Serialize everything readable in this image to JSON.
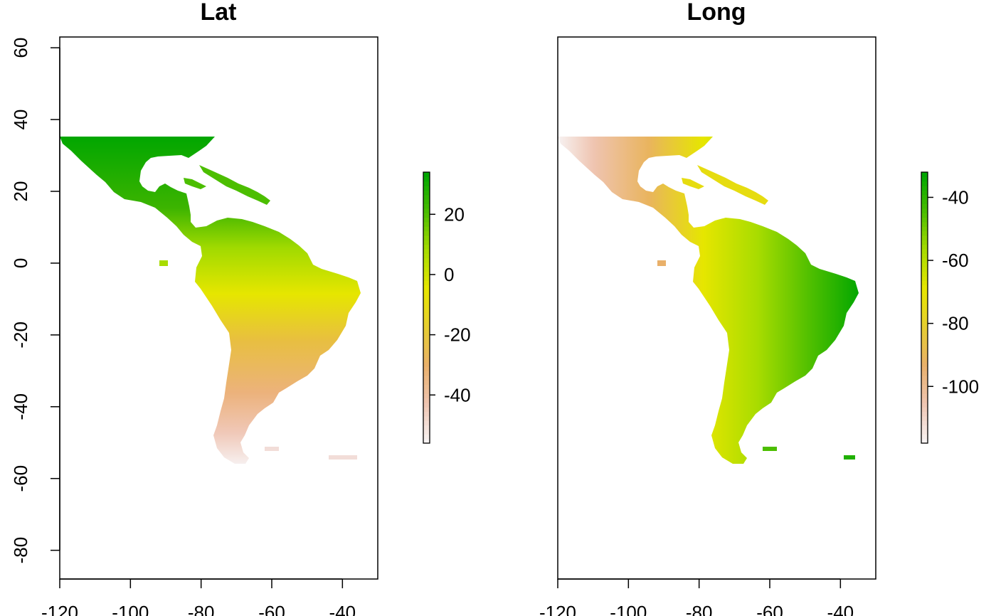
{
  "chart_data": [
    {
      "type": "heatmap",
      "title": "Lat",
      "xlabel": "",
      "ylabel": "",
      "xlim": [
        -120,
        -30
      ],
      "ylim": [
        -88,
        63
      ],
      "xticks": [
        -120,
        -100,
        -80,
        -60,
        -40
      ],
      "yticks": [
        60,
        40,
        20,
        0,
        -20,
        -40,
        -60,
        -80
      ],
      "legend": {
        "range": [
          -56,
          34
        ],
        "ticks": [
          20,
          0,
          -20,
          -40
        ],
        "colors": [
          "#f7f2f2",
          "#eec4b0",
          "#e9b06a",
          "#e6ce30",
          "#e6e600",
          "#a8dc00",
          "#4dbe00",
          "#00a600"
        ]
      }
    },
    {
      "type": "heatmap",
      "title": "Long",
      "xlabel": "",
      "ylabel": "",
      "xlim": [
        -120,
        -30
      ],
      "ylim": [
        -88,
        63
      ],
      "xticks": [
        -120,
        -100,
        -80,
        -60,
        -40
      ],
      "yticks": [],
      "legend": {
        "range": [
          -118,
          -32
        ],
        "ticks": [
          -40,
          -60,
          -80,
          -100
        ],
        "colors": [
          "#f7f2f2",
          "#eec4b0",
          "#e9b06a",
          "#e6ce30",
          "#e6e600",
          "#a8dc00",
          "#4dbe00",
          "#00a600"
        ]
      }
    }
  ]
}
